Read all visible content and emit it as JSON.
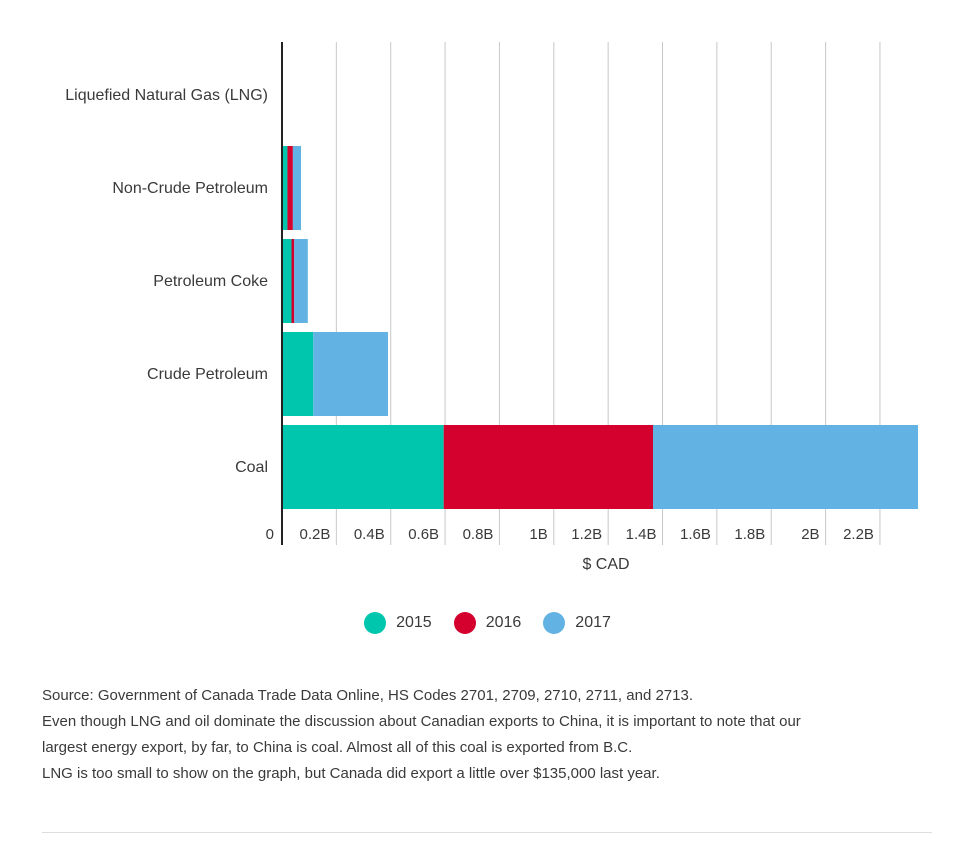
{
  "chart_data": {
    "type": "bar",
    "orientation": "horizontal",
    "stacked": true,
    "categories": [
      "Liquefied Natural Gas (LNG)",
      "Non-Crude Petroleum",
      "Petroleum Coke",
      "Crude Petroleum",
      "Coal"
    ],
    "series": [
      {
        "name": "2015",
        "color": "#00c6ad",
        "values": [
          1e-07,
          0.02,
          0.035,
          0.115,
          0.595
        ]
      },
      {
        "name": "2016",
        "color": "#d4002e",
        "values": [
          0,
          0.02,
          0.01,
          0,
          0.77
        ]
      },
      {
        "name": "2017",
        "color": "#62b2e3",
        "values": [
          1e-07,
          0.03,
          0.05,
          0.275,
          0.975
        ]
      }
    ],
    "xlabel": "$ CAD",
    "xlim": [
      0,
      2.34
    ],
    "x_ticks": [
      {
        "value": 0,
        "label": "0"
      },
      {
        "value": 0.2,
        "label": "0.2B"
      },
      {
        "value": 0.4,
        "label": "0.4B"
      },
      {
        "value": 0.6,
        "label": "0.6B"
      },
      {
        "value": 0.8,
        "label": "0.8B"
      },
      {
        "value": 1.0,
        "label": "1B"
      },
      {
        "value": 1.2,
        "label": "1.2B"
      },
      {
        "value": 1.4,
        "label": "1.4B"
      },
      {
        "value": 1.6,
        "label": "1.6B"
      },
      {
        "value": 1.8,
        "label": "1.8B"
      },
      {
        "value": 2.0,
        "label": "2B"
      },
      {
        "value": 2.2,
        "label": "2.2B"
      }
    ],
    "grid": true,
    "legend_position": "bottom"
  },
  "notes": [
    "Source: Government of Canada Trade Data Online, HS Codes 2701, 2709, 2710, 2711, and 2713.",
    "Even though LNG and oil dominate the discussion about Canadian exports to China, it is important to note that our",
    "largest energy export, by far, to China is coal. Almost all of this coal is exported from B.C.",
    "LNG is too small to show on the graph, but Canada did export a little over $135,000 last year."
  ]
}
